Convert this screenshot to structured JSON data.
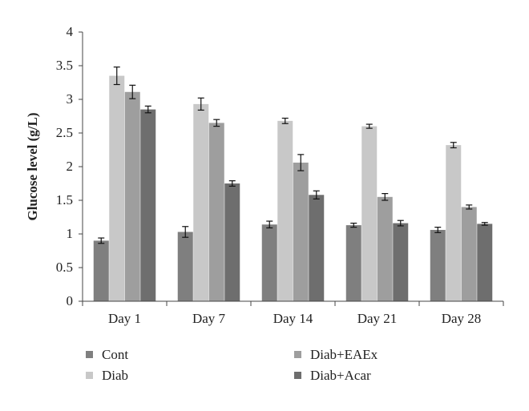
{
  "chart_data": {
    "type": "bar",
    "title": "",
    "xlabel": "",
    "ylabel": "Glucose level (g/L)",
    "ylim": [
      0,
      4
    ],
    "yticks": [
      "0",
      "0.5",
      "1",
      "1.5",
      "2",
      "2.5",
      "3",
      "3.5",
      "4"
    ],
    "categories": [
      "Day 1",
      "Day 7",
      "Day 14",
      "Day 21",
      "Day 28"
    ],
    "series": [
      {
        "name": "Cont",
        "color": "#7f7f7f",
        "values": [
          0.9,
          1.03,
          1.14,
          1.13,
          1.06
        ],
        "errors": [
          0.04,
          0.08,
          0.05,
          0.03,
          0.04
        ]
      },
      {
        "name": "Diab",
        "color": "#c8c8c8",
        "values": [
          3.35,
          2.93,
          2.68,
          2.6,
          2.32
        ],
        "errors": [
          0.13,
          0.09,
          0.04,
          0.03,
          0.04
        ]
      },
      {
        "name": "Diab+EAEx",
        "color": "#9e9e9e",
        "values": [
          3.11,
          2.65,
          2.06,
          1.55,
          1.4
        ],
        "errors": [
          0.1,
          0.05,
          0.12,
          0.05,
          0.03
        ]
      },
      {
        "name": "Diab+Acar",
        "color": "#6e6e6e",
        "values": [
          2.85,
          1.75,
          1.58,
          1.16,
          1.15
        ],
        "errors": [
          0.05,
          0.04,
          0.06,
          0.04,
          0.02
        ]
      }
    ],
    "grid": false,
    "legend": "bottom"
  }
}
